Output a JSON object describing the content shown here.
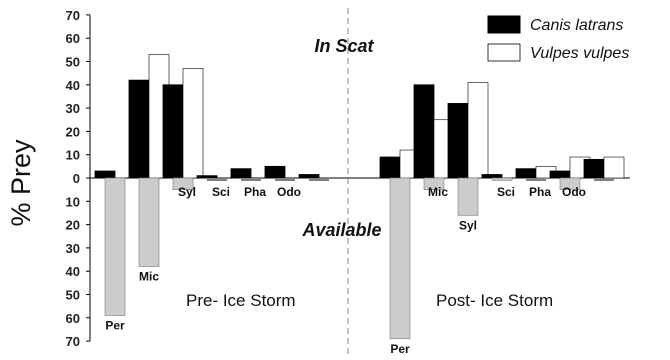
{
  "chart_data": {
    "type": "bar",
    "ylabel": "% Prey",
    "yticks": [
      "70",
      "60",
      "50",
      "40",
      "30",
      "20",
      "10",
      "0",
      "10",
      "20",
      "30",
      "40",
      "50",
      "60",
      "70"
    ],
    "y_top_range": [
      0,
      70
    ],
    "y_bottom_range": [
      0,
      70
    ],
    "annotations": {
      "top": "In Scat",
      "bottom": "Available"
    },
    "legend": {
      "position": "top-right",
      "entries": [
        "Canis latrans",
        "Vulpes vulpes"
      ]
    },
    "colors": {
      "canis": "#000000",
      "vulpes": "#ffffff",
      "available": "#cccccc"
    },
    "panels": [
      {
        "label": "Pre- Ice Storm",
        "categories": [
          {
            "label": "Per",
            "canis": 3,
            "vulpes": 0,
            "available": 59
          },
          {
            "label": "Mic",
            "canis": 42,
            "vulpes": 53,
            "available": 38
          },
          {
            "label": "Syl",
            "canis": 40,
            "vulpes": 47,
            "available": 5
          },
          {
            "label": "Sci",
            "canis": 1,
            "vulpes": 0,
            "available": 0
          },
          {
            "label": "Pha",
            "canis": 4,
            "vulpes": 0,
            "available": 0
          },
          {
            "label": "Odo",
            "canis": 5,
            "vulpes": 0,
            "available": 0
          },
          {
            "label": "",
            "canis": 1.5,
            "vulpes": 0,
            "available": 0
          }
        ]
      },
      {
        "label": "Post- Ice Storm",
        "categories": [
          {
            "label": "Per",
            "canis": 9,
            "vulpes": 12,
            "available": 69
          },
          {
            "label": "Mic",
            "canis": 40,
            "vulpes": 25,
            "available": 5
          },
          {
            "label": "Syl",
            "canis": 32,
            "vulpes": 41,
            "available": 16
          },
          {
            "label": "Sci",
            "canis": 1.5,
            "vulpes": 0,
            "available": 1
          },
          {
            "label": "Pha",
            "canis": 4,
            "vulpes": 5,
            "available": 0
          },
          {
            "label": "Odo",
            "canis": 3,
            "vulpes": 9,
            "available": 5
          },
          {
            "label": "",
            "canis": 8,
            "vulpes": 9,
            "available": 0
          }
        ]
      }
    ]
  }
}
